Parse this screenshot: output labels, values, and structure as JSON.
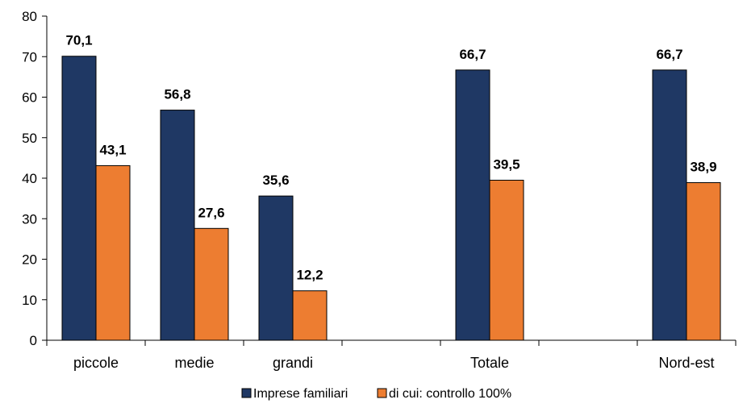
{
  "chart_data": {
    "type": "bar",
    "categories": [
      "piccole",
      "medie",
      "grandi",
      "",
      "Totale",
      "",
      "Nord-est"
    ],
    "series": [
      {
        "name": "Imprese familiari",
        "color": "#1f3864",
        "values": [
          70.1,
          56.8,
          35.6,
          null,
          66.7,
          null,
          66.7
        ]
      },
      {
        "name": "di cui: controllo 100%",
        "color": "#ed7d31",
        "values": [
          43.1,
          27.6,
          12.2,
          null,
          39.5,
          null,
          38.9
        ]
      }
    ],
    "data_labels": [
      [
        "70,1",
        "56,8",
        "35,6",
        null,
        "66,7",
        null,
        "66,7"
      ],
      [
        "43,1",
        "27,6",
        "12,2",
        null,
        "39,5",
        null,
        "38,9"
      ]
    ],
    "yticks": [
      "0",
      "10",
      "20",
      "30",
      "40",
      "50",
      "60",
      "70",
      "80"
    ],
    "ylim": [
      0,
      80
    ],
    "title": "",
    "xlabel": "",
    "ylabel": "",
    "grid": false,
    "legend_position": "bottom"
  }
}
